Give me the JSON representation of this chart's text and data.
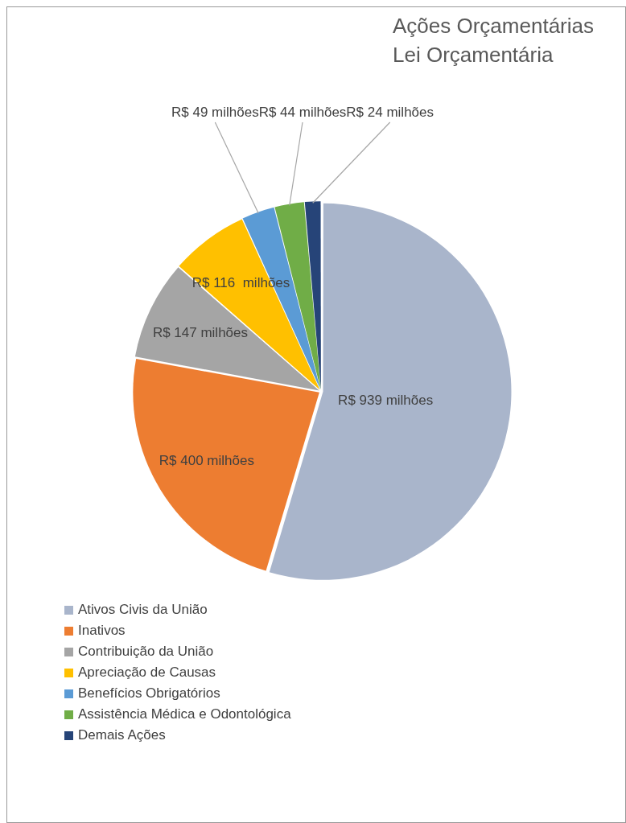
{
  "chart_data": {
    "type": "pie",
    "title": "Ações Orçamentárias",
    "subtitle": "Lei Orçamentária",
    "categories": [
      "Ativos Civis da União",
      "Inativos",
      "Contribuição da União",
      "Apreciação de Causas",
      "Benefícios Obrigatórios",
      "Assistência Médica e Odontológica",
      "Demais Ações"
    ],
    "values": [
      939,
      400,
      147,
      116,
      49,
      44,
      24
    ],
    "value_labels": [
      "R$ 939 milhões",
      "R$ 400 milhões",
      "R$ 147 milhões",
      "R$ 116  milhões",
      "R$ 49 milhões",
      "R$ 44 milhões",
      "R$ 24 milhões"
    ],
    "colors": [
      "#a9b5cb",
      "#ed7d31",
      "#a5a5a5",
      "#ffc000",
      "#5b9bd5",
      "#70ad47",
      "#264478"
    ],
    "legend": "bottom left"
  }
}
